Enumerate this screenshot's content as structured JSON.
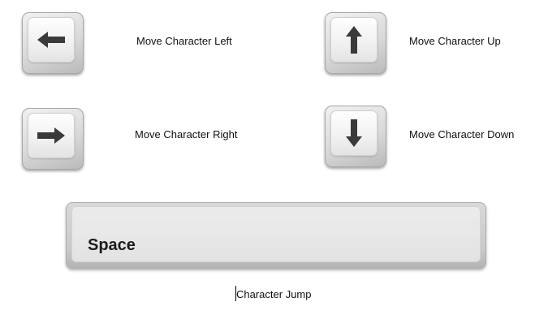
{
  "controls": {
    "left": {
      "label": "Move Character Left",
      "icon": "left-arrow-icon"
    },
    "up": {
      "label": "Move Character Up",
      "icon": "up-arrow-icon"
    },
    "right": {
      "label": "Move Character Right",
      "icon": "right-arrow-icon"
    },
    "down": {
      "label": "Move Character Down",
      "icon": "down-arrow-icon"
    },
    "space": {
      "key_label": "Space",
      "label": "Character Jump"
    }
  },
  "colors": {
    "arrow": "#3a3a3a",
    "text": "#111111"
  }
}
